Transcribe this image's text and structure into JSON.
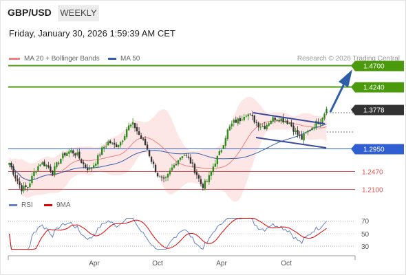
{
  "header": {
    "pair": "GBP/USD",
    "timeframe": "WEEKLY",
    "date": "Friday, January 30, 2026 1:59:39 AM CET"
  },
  "legend": {
    "ma20": "MA 20 + Bollinger Bands",
    "ma50": "MA 50",
    "credit": "Research © 2026 Trading Central"
  },
  "rsi_legend": {
    "rsi": "RSI",
    "ma": "9MA"
  },
  "colors": {
    "bullish": "#2e8b1e",
    "bearish": "#333333",
    "target": "#4a9a0c",
    "pivot": "#2f5fd0",
    "support": "#e05050",
    "arrow": "#2e5ea8",
    "channel": "#3a4a9a",
    "bb_fill": "#fde6e6",
    "ma20": "#f08080",
    "ma50": "#2e5ea8"
  },
  "chart_data": [
    {
      "type": "candlestick",
      "title": "GBP/USD",
      "x_ticks": [
        "Apr",
        "Oct",
        "Apr",
        "Oct"
      ],
      "current_price": "1.3778",
      "levels": [
        {
          "label": "1.4700",
          "kind": "target"
        },
        {
          "label": "1.4240",
          "kind": "target"
        },
        {
          "label": "1.3778",
          "kind": "last"
        },
        {
          "label": "1.2950",
          "kind": "pivot"
        },
        {
          "label": "1.2470",
          "kind": "support"
        },
        {
          "label": "1.2100",
          "kind": "support"
        }
      ],
      "approx_close_path": [
        1.265,
        1.235,
        1.21,
        1.215,
        1.245,
        1.265,
        1.26,
        1.245,
        1.27,
        1.285,
        1.29,
        1.28,
        1.26,
        1.25,
        1.27,
        1.295,
        1.31,
        1.3,
        1.31,
        1.34,
        1.345,
        1.32,
        1.3,
        1.265,
        1.235,
        1.225,
        1.25,
        1.27,
        1.285,
        1.27,
        1.245,
        1.215,
        1.23,
        1.265,
        1.29,
        1.33,
        1.35,
        1.355,
        1.37,
        1.36,
        1.345,
        1.34,
        1.355,
        1.36,
        1.355,
        1.35,
        1.33,
        1.315,
        1.33,
        1.345,
        1.355,
        1.3778
      ]
    },
    {
      "type": "line",
      "title": "RSI",
      "series": [
        {
          "name": "RSI"
        },
        {
          "name": "9MA"
        }
      ],
      "y_ticks": [
        "70",
        "50",
        "30"
      ]
    }
  ]
}
